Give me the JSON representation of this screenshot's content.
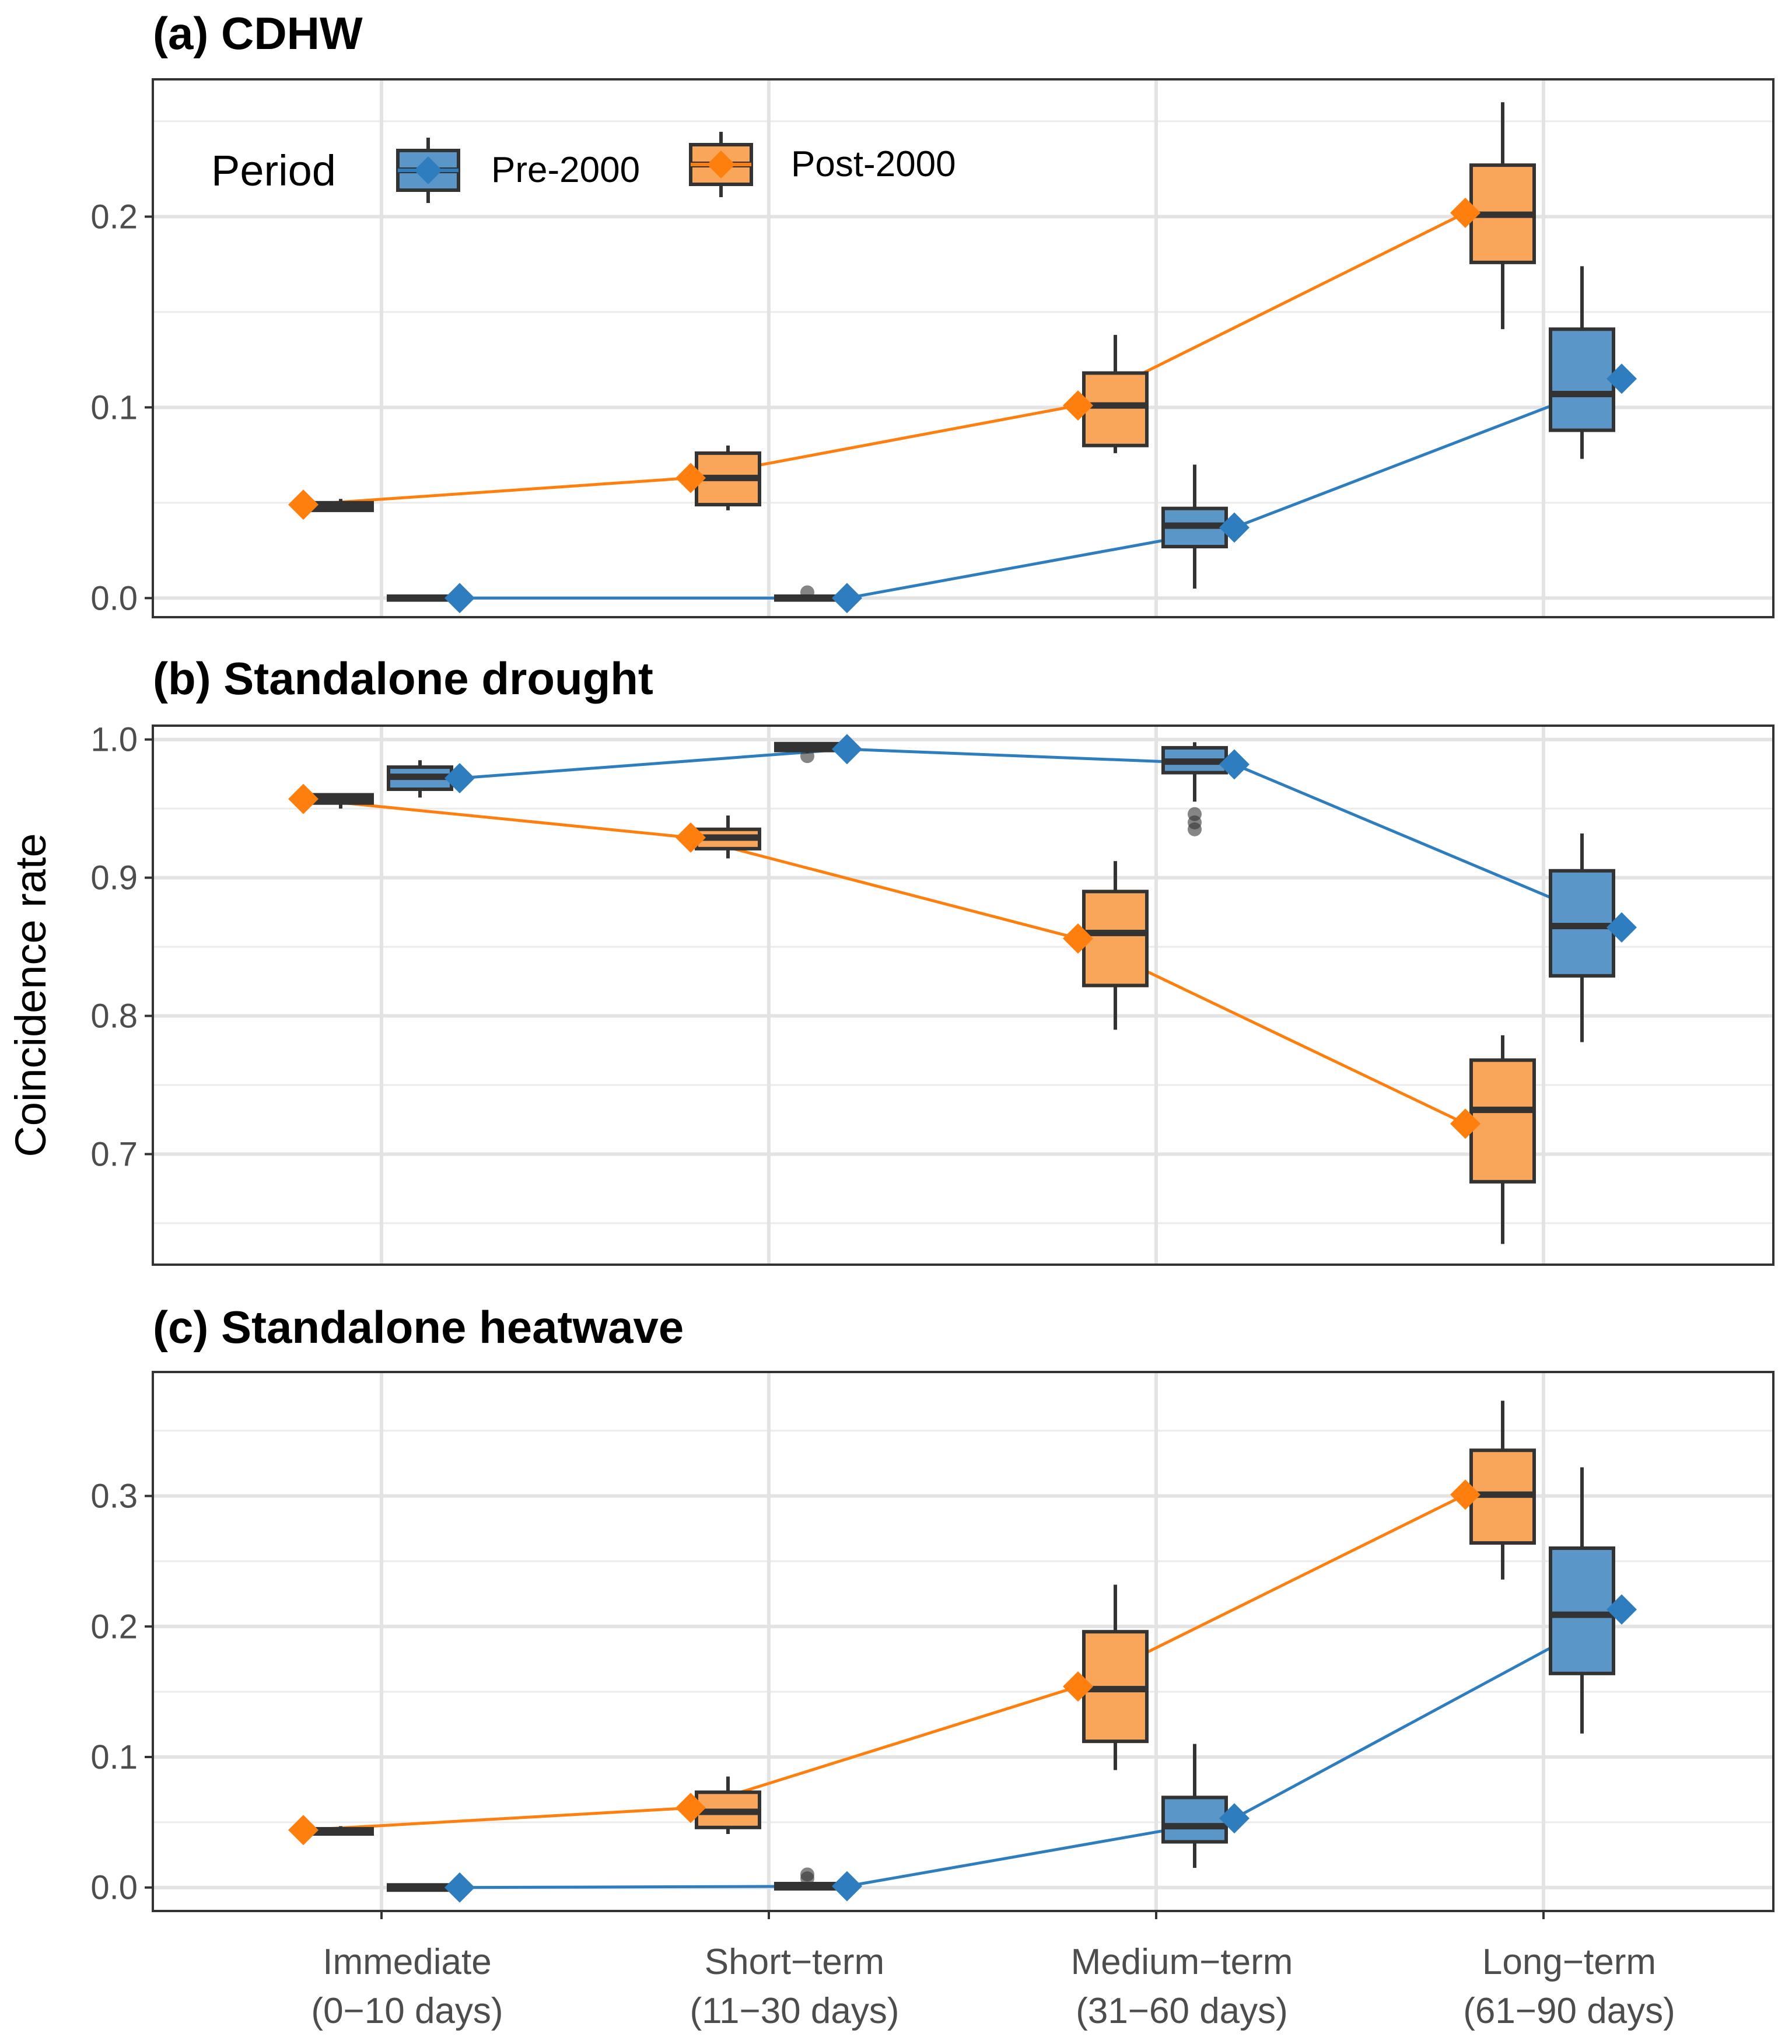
{
  "chart_data": {
    "type": "box",
    "ylabel": "Coincidence rate",
    "categories": [
      "Immediate\n(0−10 days)",
      "Short−term\n(11−30 days)",
      "Medium−term\n(31−60 days)",
      "Long−term\n(61−90 days)"
    ],
    "legend": {
      "title": "Period",
      "position": "top-left (inside panel a)",
      "entries": [
        {
          "name": "Pre-2000",
          "color": "#2E7EBF",
          "fill": "#5B96C8"
        },
        {
          "name": "Post-2000",
          "color": "#FF7F0E",
          "fill": "#F9A55A"
        }
      ]
    },
    "panels": [
      {
        "title": "(a) CDHW",
        "ylim": [
          -0.01,
          0.272
        ],
        "yticks": [
          0.0,
          0.1,
          0.2
        ],
        "yticklabels": [
          "0.0",
          "0.1",
          "0.2"
        ],
        "series": [
          {
            "name": "Pre-2000",
            "means": [
              0.0,
              0.0,
              0.037,
              0.115
            ],
            "boxes": [
              {
                "min": -0.001,
                "q1": -0.001,
                "median": 0.0,
                "q3": 0.001,
                "max": 0.001,
                "outliers": []
              },
              {
                "min": -0.001,
                "q1": -0.001,
                "median": 0.0,
                "q3": 0.001,
                "max": 0.001,
                "outliers": [
                  0.003
                ]
              },
              {
                "min": 0.005,
                "q1": 0.027,
                "median": 0.038,
                "q3": 0.047,
                "max": 0.07,
                "outliers": []
              },
              {
                "min": 0.073,
                "q1": 0.088,
                "median": 0.107,
                "q3": 0.141,
                "max": 0.174,
                "outliers": []
              }
            ]
          },
          {
            "name": "Post-2000",
            "means": [
              0.049,
              0.063,
              0.101,
              0.202
            ],
            "boxes": [
              {
                "min": 0.046,
                "q1": 0.046,
                "median": 0.048,
                "q3": 0.05,
                "max": 0.052,
                "outliers": []
              },
              {
                "min": 0.046,
                "q1": 0.049,
                "median": 0.063,
                "q3": 0.076,
                "max": 0.08,
                "outliers": []
              },
              {
                "min": 0.076,
                "q1": 0.08,
                "median": 0.101,
                "q3": 0.118,
                "max": 0.138,
                "outliers": []
              },
              {
                "min": 0.141,
                "q1": 0.176,
                "median": 0.201,
                "q3": 0.227,
                "max": 0.26,
                "outliers": []
              }
            ]
          }
        ]
      },
      {
        "title": "(b) Standalone drought",
        "ylim": [
          0.62,
          1.01
        ],
        "yticks": [
          0.7,
          0.8,
          0.9,
          1.0
        ],
        "yticklabels": [
          "0.7",
          "0.8",
          "0.9",
          "1.0"
        ],
        "series": [
          {
            "name": "Pre-2000",
            "means": [
              0.972,
              0.993,
              0.982,
              0.864
            ],
            "boxes": [
              {
                "min": 0.958,
                "q1": 0.964,
                "median": 0.973,
                "q3": 0.98,
                "max": 0.985,
                "outliers": []
              },
              {
                "min": 0.99,
                "q1": 0.992,
                "median": 0.995,
                "q3": 0.997,
                "max": 0.998,
                "outliers": [
                  0.988
                ]
              },
              {
                "min": 0.955,
                "q1": 0.976,
                "median": 0.984,
                "q3": 0.994,
                "max": 0.998,
                "outliers": [
                  0.946,
                  0.94,
                  0.935
                ]
              },
              {
                "min": 0.781,
                "q1": 0.829,
                "median": 0.865,
                "q3": 0.905,
                "max": 0.932,
                "outliers": []
              }
            ]
          },
          {
            "name": "Post-2000",
            "means": [
              0.957,
              0.929,
              0.856,
              0.722
            ],
            "boxes": [
              {
                "min": 0.95,
                "q1": 0.954,
                "median": 0.957,
                "q3": 0.96,
                "max": 0.961,
                "outliers": []
              },
              {
                "min": 0.914,
                "q1": 0.921,
                "median": 0.929,
                "q3": 0.935,
                "max": 0.945,
                "outliers": []
              },
              {
                "min": 0.79,
                "q1": 0.822,
                "median": 0.86,
                "q3": 0.89,
                "max": 0.912,
                "outliers": []
              },
              {
                "min": 0.635,
                "q1": 0.68,
                "median": 0.732,
                "q3": 0.768,
                "max": 0.786,
                "outliers": []
              }
            ]
          }
        ]
      },
      {
        "title": "(c) Standalone heatwave",
        "ylim": [
          -0.018,
          0.395
        ],
        "yticks": [
          0.0,
          0.1,
          0.2,
          0.3
        ],
        "yticklabels": [
          "0.0",
          "0.1",
          "0.2",
          "0.3"
        ],
        "series": [
          {
            "name": "Pre-2000",
            "means": [
              0.0,
              0.001,
              0.053,
              0.213
            ],
            "boxes": [
              {
                "min": -0.002,
                "q1": -0.002,
                "median": 0.0,
                "q3": 0.002,
                "max": 0.002,
                "outliers": []
              },
              {
                "min": -0.001,
                "q1": -0.001,
                "median": 0.001,
                "q3": 0.003,
                "max": 0.004,
                "outliers": [
                  0.007,
                  0.01
                ]
              },
              {
                "min": 0.015,
                "q1": 0.035,
                "median": 0.047,
                "q3": 0.069,
                "max": 0.11,
                "outliers": []
              },
              {
                "min": 0.118,
                "q1": 0.164,
                "median": 0.209,
                "q3": 0.26,
                "max": 0.322,
                "outliers": []
              }
            ]
          },
          {
            "name": "Post-2000",
            "means": [
              0.044,
              0.061,
              0.154,
              0.301
            ],
            "boxes": [
              {
                "min": 0.041,
                "q1": 0.041,
                "median": 0.043,
                "q3": 0.045,
                "max": 0.047,
                "outliers": []
              },
              {
                "min": 0.041,
                "q1": 0.046,
                "median": 0.058,
                "q3": 0.073,
                "max": 0.085,
                "outliers": []
              },
              {
                "min": 0.09,
                "q1": 0.112,
                "median": 0.152,
                "q3": 0.196,
                "max": 0.232,
                "outliers": []
              },
              {
                "min": 0.236,
                "q1": 0.264,
                "median": 0.301,
                "q3": 0.335,
                "max": 0.373,
                "outliers": []
              }
            ]
          }
        ]
      }
    ]
  }
}
